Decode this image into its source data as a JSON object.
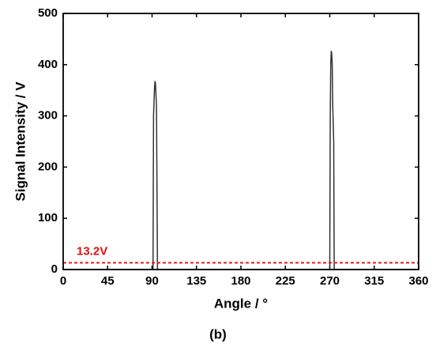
{
  "chart_data": {
    "type": "line",
    "x": [
      0,
      91,
      91.5,
      92.5,
      93,
      93.5,
      94,
      94.5,
      95.5,
      96,
      270,
      270.5,
      271,
      271.5,
      272,
      272.5,
      273,
      274,
      274.5,
      360
    ],
    "values": [
      0,
      0,
      300,
      355,
      368,
      362,
      340,
      320,
      0,
      0,
      0,
      300,
      400,
      427,
      420,
      400,
      320,
      250,
      0,
      0
    ],
    "color": "#333333",
    "xlim": [
      0,
      360
    ],
    "xticks": [
      0,
      45,
      90,
      135,
      180,
      225,
      270,
      315,
      360
    ],
    "ylim": [
      0,
      500
    ],
    "yticks": [
      0,
      100,
      200,
      300,
      400,
      500
    ],
    "xlabel": "Angle / °",
    "ylabel": "Signal Intensity / V",
    "threshold": {
      "value": 13.2,
      "label": "13.2V",
      "color": "#e01010"
    },
    "caption": "(b)"
  }
}
